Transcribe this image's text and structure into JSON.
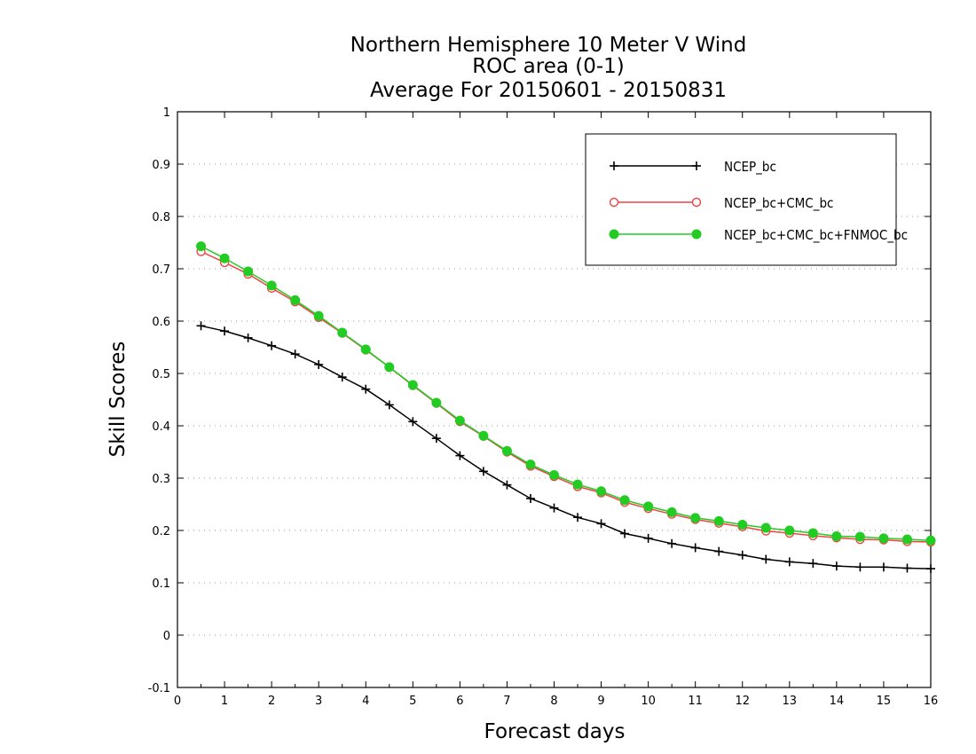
{
  "chart_data": {
    "type": "line",
    "title": [
      "Northern Hemisphere 10 Meter V Wind",
      "ROC area (0-1)",
      "Average For 20150601 - 20150831"
    ],
    "xlabel": "Forecast days",
    "ylabel": "Skill Scores",
    "xlim": [
      0,
      16
    ],
    "ylim": [
      -0.1,
      1
    ],
    "xticks": [
      "0",
      "1",
      "2",
      "3",
      "4",
      "5",
      "6",
      "7",
      "8",
      "9",
      "10",
      "11",
      "12",
      "13",
      "14",
      "15",
      "16"
    ],
    "yticks": [
      "-0.1",
      "0",
      "0.1",
      "0.2",
      "0.3",
      "0.4",
      "0.5",
      "0.6",
      "0.7",
      "0.8",
      "0.9",
      "1"
    ],
    "grid": "horizontal-dotted",
    "legend_position": "top-right",
    "x": [
      0.5,
      1,
      1.5,
      2,
      2.5,
      3,
      3.5,
      4,
      4.5,
      5,
      5.5,
      6,
      6.5,
      7,
      7.5,
      8,
      8.5,
      9,
      9.5,
      10,
      10.5,
      11,
      11.5,
      12,
      12.5,
      13,
      13.5,
      14,
      14.5,
      15,
      15.5,
      16
    ],
    "series": [
      {
        "name": "NCEP_bc",
        "color": "#000000",
        "marker": "plus",
        "values": [
          0.591,
          0.581,
          0.568,
          0.553,
          0.537,
          0.517,
          0.493,
          0.47,
          0.44,
          0.408,
          0.376,
          0.343,
          0.313,
          0.287,
          0.261,
          0.243,
          0.225,
          0.213,
          0.194,
          0.185,
          0.175,
          0.167,
          0.16,
          0.153,
          0.145,
          0.14,
          0.137,
          0.132,
          0.13,
          0.13,
          0.128,
          0.127
        ]
      },
      {
        "name": "NCEP_bc+CMC_bc",
        "color": "#ee4444",
        "marker": "open-circle",
        "values": [
          0.733,
          0.712,
          0.69,
          0.663,
          0.637,
          0.607,
          0.577,
          0.545,
          0.512,
          0.477,
          0.443,
          0.408,
          0.38,
          0.35,
          0.323,
          0.303,
          0.284,
          0.272,
          0.254,
          0.242,
          0.231,
          0.221,
          0.214,
          0.207,
          0.199,
          0.195,
          0.19,
          0.186,
          0.183,
          0.182,
          0.179,
          0.178
        ]
      },
      {
        "name": "NCEP_bc+CMC_bc+FNMOC_bc",
        "color": "#22cc22",
        "marker": "filled-circle",
        "values": [
          0.743,
          0.72,
          0.695,
          0.668,
          0.64,
          0.61,
          0.578,
          0.546,
          0.512,
          0.478,
          0.444,
          0.41,
          0.381,
          0.352,
          0.326,
          0.306,
          0.288,
          0.275,
          0.258,
          0.246,
          0.235,
          0.224,
          0.218,
          0.211,
          0.205,
          0.2,
          0.195,
          0.189,
          0.188,
          0.185,
          0.183,
          0.181
        ]
      }
    ]
  }
}
